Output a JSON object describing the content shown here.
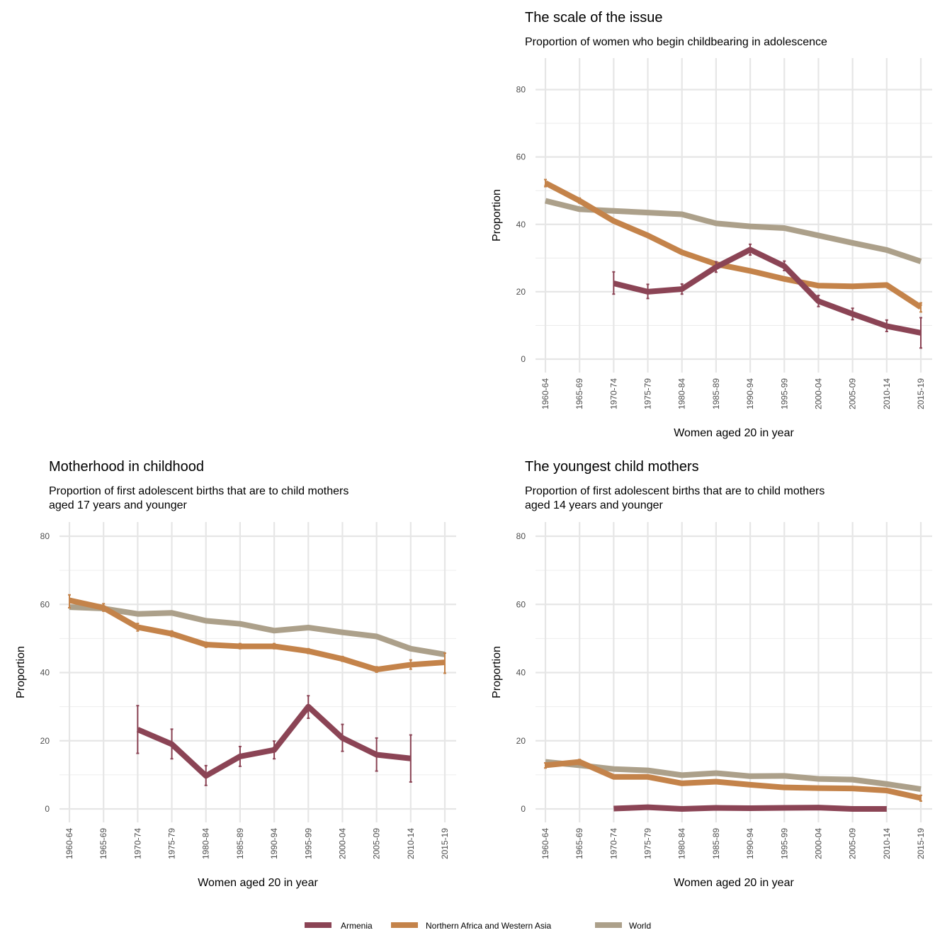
{
  "colors": {
    "Armenia": "#8b4455",
    "Northern Africa and Western Asia": "#c4834a",
    "World": "#aca08a"
  },
  "legend": {
    "items": [
      "Armenia",
      "Northern Africa and Western Asia",
      "World"
    ]
  },
  "chart_data": [
    {
      "type": "line",
      "title": "The scale of the issue",
      "subtitle": [
        "Proportion of women who begin childbearing in adolescence"
      ],
      "xlabel": "Women aged 20 in year",
      "ylabel": "Proportion",
      "ylim": [
        0,
        80
      ],
      "yticks": [
        0,
        20,
        40,
        60,
        80
      ],
      "categories": [
        "1960-64",
        "1965-69",
        "1970-74",
        "1975-79",
        "1980-84",
        "1985-89",
        "1990-94",
        "1995-99",
        "2000-04",
        "2005-09",
        "2010-14",
        "2015-19"
      ],
      "series": [
        {
          "name": "World",
          "values": [
            47,
            44.5,
            44,
            43.5,
            43,
            40.3,
            39.4,
            38.9,
            36.7,
            34.5,
            32.4,
            29
          ],
          "err_lo": [
            null,
            null,
            null,
            null,
            null,
            null,
            null,
            null,
            null,
            null,
            null,
            null
          ],
          "err_hi": [
            null,
            null,
            null,
            null,
            null,
            null,
            null,
            null,
            null,
            null,
            null,
            null
          ]
        },
        {
          "name": "Northern Africa and Western Asia",
          "values": [
            52.3,
            47,
            41,
            36.7,
            31.7,
            28.2,
            26.2,
            23.8,
            21.8,
            21.6,
            22,
            15.4
          ],
          "err_lo": [
            51.2,
            46.3,
            null,
            null,
            null,
            null,
            null,
            null,
            null,
            null,
            null,
            14
          ],
          "err_hi": [
            53.3,
            47.8,
            null,
            null,
            null,
            null,
            null,
            null,
            null,
            null,
            null,
            16.7
          ]
        },
        {
          "name": "Armenia",
          "values": [
            null,
            null,
            22.5,
            20,
            20.8,
            27.3,
            32.5,
            27.6,
            17.2,
            13.4,
            9.8,
            7.8
          ],
          "err_lo": [
            null,
            null,
            19.3,
            18,
            19.3,
            25.8,
            30.9,
            26.3,
            15.6,
            11.7,
            8.2,
            3.3
          ],
          "err_hi": [
            null,
            null,
            25.9,
            22.2,
            22.3,
            28.9,
            34.1,
            29.1,
            18.9,
            15.1,
            11.6,
            12.3
          ]
        }
      ]
    },
    {
      "type": "line",
      "title": "Motherhood in childhood",
      "subtitle": [
        "Proportion of first adolescent births that are to child mothers",
        "aged 17 years and younger"
      ],
      "xlabel": "Women aged 20 in year",
      "ylabel": "Proportion",
      "ylim": [
        0,
        80
      ],
      "yticks": [
        0,
        20,
        40,
        60,
        80
      ],
      "categories": [
        "1960-64",
        "1965-69",
        "1970-74",
        "1975-79",
        "1980-84",
        "1985-89",
        "1990-94",
        "1995-99",
        "2000-04",
        "2005-09",
        "2010-14",
        "2015-19"
      ],
      "series": [
        {
          "name": "World",
          "values": [
            59.2,
            58.8,
            57.2,
            57.5,
            55.2,
            54.3,
            52.3,
            53.2,
            51.8,
            50.6,
            47,
            45.3
          ],
          "err_lo": [
            null,
            null,
            null,
            null,
            null,
            null,
            null,
            null,
            null,
            null,
            null,
            null
          ],
          "err_hi": [
            null,
            null,
            null,
            null,
            null,
            null,
            null,
            null,
            null,
            null,
            null,
            null
          ]
        },
        {
          "name": "Northern Africa and Western Asia",
          "values": [
            61.2,
            59,
            53.3,
            51.4,
            48.2,
            47.7,
            47.7,
            46.3,
            44,
            40.9,
            42.3,
            43
          ],
          "err_lo": [
            59,
            58,
            52.2,
            50.6,
            47.4,
            47,
            47,
            45.6,
            43.3,
            40.1,
            41,
            39.8
          ],
          "err_hi": [
            62.8,
            60.2,
            54.4,
            52.2,
            48.9,
            48.5,
            48.5,
            47,
            44.7,
            41.7,
            43.7,
            45.7
          ]
        },
        {
          "name": "Armenia",
          "values": [
            null,
            null,
            23.3,
            19,
            9.7,
            15.4,
            17.3,
            30,
            20.8,
            15.9,
            14.8,
            null
          ],
          "err_lo": [
            null,
            null,
            16.3,
            14.7,
            6.9,
            12.5,
            14.7,
            26.6,
            16.9,
            11.1,
            7.9,
            null
          ],
          "err_hi": [
            null,
            null,
            30.3,
            23.4,
            12.7,
            18.3,
            19.9,
            33.2,
            24.8,
            20.8,
            21.7,
            null
          ]
        }
      ]
    },
    {
      "type": "line",
      "title": "The youngest child mothers",
      "subtitle": [
        "Proportion of first adolescent births that are to child mothers",
        "aged 14 years and younger"
      ],
      "xlabel": "Women aged 20 in year",
      "ylabel": "Proportion",
      "ylim": [
        0,
        80
      ],
      "yticks": [
        0,
        20,
        40,
        60,
        80
      ],
      "categories": [
        "1960-64",
        "1965-69",
        "1970-74",
        "1975-79",
        "1980-84",
        "1985-89",
        "1990-94",
        "1995-99",
        "2000-04",
        "2005-09",
        "2010-14",
        "2015-19"
      ],
      "series": [
        {
          "name": "World",
          "values": [
            13.8,
            12.8,
            11.7,
            11.3,
            9.9,
            10.5,
            9.6,
            9.7,
            8.8,
            8.6,
            7.3,
            5.8
          ],
          "err_lo": [
            null,
            null,
            null,
            null,
            null,
            null,
            null,
            null,
            null,
            null,
            null,
            null
          ],
          "err_hi": [
            null,
            null,
            null,
            null,
            null,
            null,
            null,
            null,
            null,
            null,
            null,
            null
          ]
        },
        {
          "name": "Northern Africa and Western Asia",
          "values": [
            12.8,
            13.8,
            9.4,
            9.4,
            7.5,
            8,
            7.1,
            6.3,
            6.1,
            6,
            5.4,
            3.2
          ],
          "err_lo": [
            12,
            13,
            null,
            null,
            null,
            null,
            null,
            null,
            null,
            null,
            null,
            2.3
          ],
          "err_hi": [
            13.5,
            14.5,
            null,
            null,
            null,
            null,
            null,
            null,
            null,
            null,
            null,
            4
          ]
        },
        {
          "name": "Armenia",
          "values": [
            null,
            null,
            0.1,
            0.5,
            0,
            0.3,
            0.2,
            0.3,
            0.4,
            0,
            0,
            null
          ],
          "err_lo": [
            null,
            null,
            null,
            null,
            null,
            null,
            null,
            null,
            null,
            null,
            null,
            null
          ],
          "err_hi": [
            null,
            null,
            null,
            null,
            null,
            null,
            null,
            null,
            null,
            null,
            null,
            null
          ]
        }
      ]
    }
  ]
}
